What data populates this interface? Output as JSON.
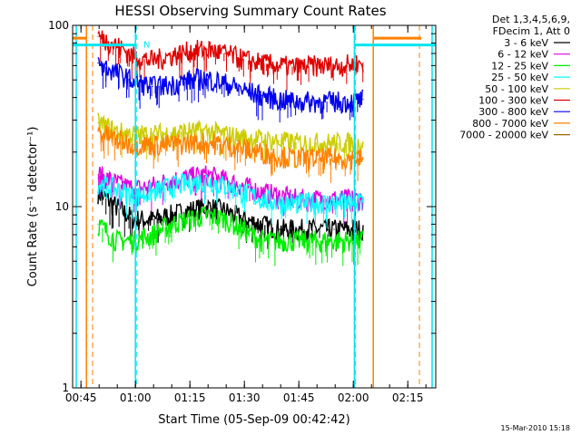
{
  "chart_data": {
    "type": "line",
    "title": "HESSI Observing Summary Count Rates",
    "xlabel": "Start Time (05-Sep-09 00:42:42)",
    "ylabel": "Count Rate (s⁻¹ detector⁻¹)",
    "ylog": true,
    "ylim": [
      1,
      100
    ],
    "xlim_minutes": [
      0,
      100
    ],
    "x_units": "minutes after 00:42:42",
    "x_ticks": [
      {
        "t": 2.3,
        "label": "00:45"
      },
      {
        "t": 17.3,
        "label": "01:00"
      },
      {
        "t": 32.3,
        "label": "01:15"
      },
      {
        "t": 47.3,
        "label": "01:30"
      },
      {
        "t": 62.3,
        "label": "01:45"
      },
      {
        "t": 77.3,
        "label": "02:00"
      },
      {
        "t": 92.3,
        "label": "02:15"
      }
    ],
    "y_ticks": [
      {
        "v": 1,
        "label": "1"
      },
      {
        "v": 10,
        "label": "10"
      },
      {
        "v": 100,
        "label": "100"
      }
    ],
    "legend_header": [
      "Det 1,3,4,5,6,9,",
      "FDecim 1, Att 0"
    ],
    "legend_position": "right",
    "series": [
      {
        "name": "3 - 6 keV",
        "color": "#000000",
        "x": [
          7,
          12,
          17,
          22,
          27,
          32,
          37,
          42,
          47,
          52,
          57,
          62,
          67,
          72,
          77,
          80
        ],
        "y": [
          12,
          10,
          8.5,
          8.5,
          9,
          9.5,
          10,
          9.5,
          8.5,
          8,
          7.5,
          7.5,
          7.5,
          7.5,
          7.5,
          7.5
        ]
      },
      {
        "name": "6 - 12 keV",
        "color": "#e000e0",
        "x": [
          7,
          12,
          17,
          22,
          27,
          32,
          37,
          42,
          47,
          52,
          57,
          62,
          67,
          72,
          77,
          80
        ],
        "y": [
          15,
          13.5,
          12.5,
          13,
          14,
          14.5,
          15,
          14,
          13,
          12,
          11.5,
          11,
          11,
          11,
          11,
          11
        ]
      },
      {
        "name": "12 - 25 keV",
        "color": "#00ee00",
        "x": [
          7,
          12,
          17,
          22,
          27,
          32,
          37,
          42,
          47,
          52,
          57,
          62,
          67,
          72,
          77,
          80
        ],
        "y": [
          8,
          6.5,
          6.5,
          7,
          8,
          8.5,
          9,
          8.5,
          7.5,
          6.5,
          6.5,
          6.5,
          6.5,
          6.5,
          6.5,
          6.5
        ]
      },
      {
        "name": "25 - 50 keV",
        "color": "#00ffff",
        "x": [
          7,
          12,
          17,
          22,
          27,
          32,
          37,
          42,
          47,
          52,
          57,
          62,
          67,
          72,
          77,
          80
        ],
        "y": [
          13.5,
          12.5,
          11.5,
          12,
          13,
          13.5,
          14,
          13,
          12,
          11,
          10.5,
          10.5,
          10.5,
          10.5,
          10.5,
          11
        ]
      },
      {
        "name": "50 - 100 keV",
        "color": "#cccc00",
        "x": [
          7,
          12,
          17,
          22,
          27,
          32,
          37,
          42,
          47,
          52,
          57,
          62,
          67,
          72,
          77,
          80
        ],
        "y": [
          29,
          26,
          25,
          25,
          25.5,
          26,
          26,
          25,
          24,
          23.5,
          23,
          22.5,
          22.5,
          22.5,
          22.5,
          22.5
        ]
      },
      {
        "name": "100 - 300 keV",
        "color": "#e00000",
        "x": [
          7,
          12,
          17,
          22,
          27,
          32,
          37,
          42,
          47,
          52,
          57,
          62,
          67,
          72,
          77,
          80
        ],
        "y": [
          87,
          78,
          67,
          64,
          68,
          72,
          74,
          70,
          65,
          62,
          60,
          59,
          60,
          60,
          61,
          62
        ]
      },
      {
        "name": "300 - 800 keV",
        "color": "#0000ee",
        "x": [
          7,
          12,
          17,
          22,
          27,
          32,
          37,
          42,
          47,
          52,
          57,
          62,
          67,
          72,
          77,
          80
        ],
        "y": [
          62,
          55,
          49,
          46,
          47,
          50,
          51,
          48,
          44,
          41,
          39,
          38,
          38,
          38,
          38,
          39
        ]
      },
      {
        "name": "800 - 7000 keV",
        "color": "#ff8000",
        "x": [
          7,
          12,
          17,
          22,
          27,
          32,
          37,
          42,
          47,
          52,
          57,
          62,
          67,
          72,
          77,
          80
        ],
        "y": [
          26,
          23.5,
          22,
          22,
          22,
          22.5,
          22.5,
          22,
          21,
          20,
          19,
          18.5,
          18.5,
          18.5,
          18.5,
          18.5
        ]
      },
      {
        "name": "7000 - 20000 keV",
        "color": "#996600",
        "x": [],
        "y": []
      }
    ],
    "annotations": {
      "attenuator_label": "N",
      "cyan_vertical_t": [
        1,
        17.3,
        77.6,
        99
      ],
      "cyan_dashed_t": [
        17.3,
        77.6
      ],
      "orange_solid_t": [
        3.8,
        82.8
      ],
      "orange_dashed_t": [
        5.5,
        95.5
      ]
    },
    "timestamp": "15-Mar-2010 15:18",
    "grid": false
  }
}
